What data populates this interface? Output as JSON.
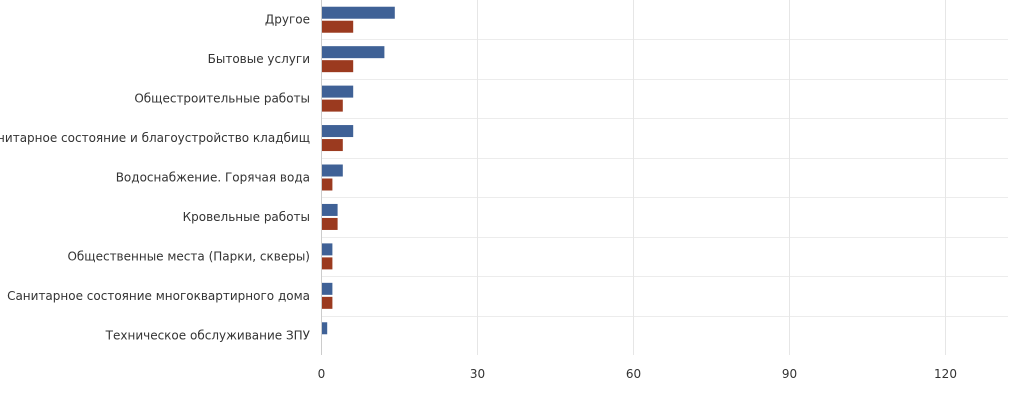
{
  "chart_data": {
    "type": "bar",
    "orientation": "horizontal",
    "categories": [
      "Другое",
      "Бытовые услуги",
      "Общестроительные работы",
      "Санитарное состояние и благоустройство кладбищ",
      "Водоснабжение. Горячая вода",
      "Кровельные работы",
      "Общественные места (Парки, скверы)",
      "Санитарное состояние многоквартирного дома",
      "Техническое обслуживание ЗПУ"
    ],
    "series": [
      {
        "color": "#3f6196",
        "values": [
          14,
          12,
          6,
          6,
          4,
          3,
          2,
          2,
          1
        ]
      },
      {
        "color": "#9b3a1f",
        "values": [
          6,
          6,
          4,
          4,
          2,
          3,
          2,
          2,
          0
        ]
      }
    ],
    "xlim": [
      0,
      132
    ],
    "xticks": [
      "0",
      "30",
      "60",
      "90",
      "120"
    ],
    "grid": true,
    "legend": "none"
  }
}
